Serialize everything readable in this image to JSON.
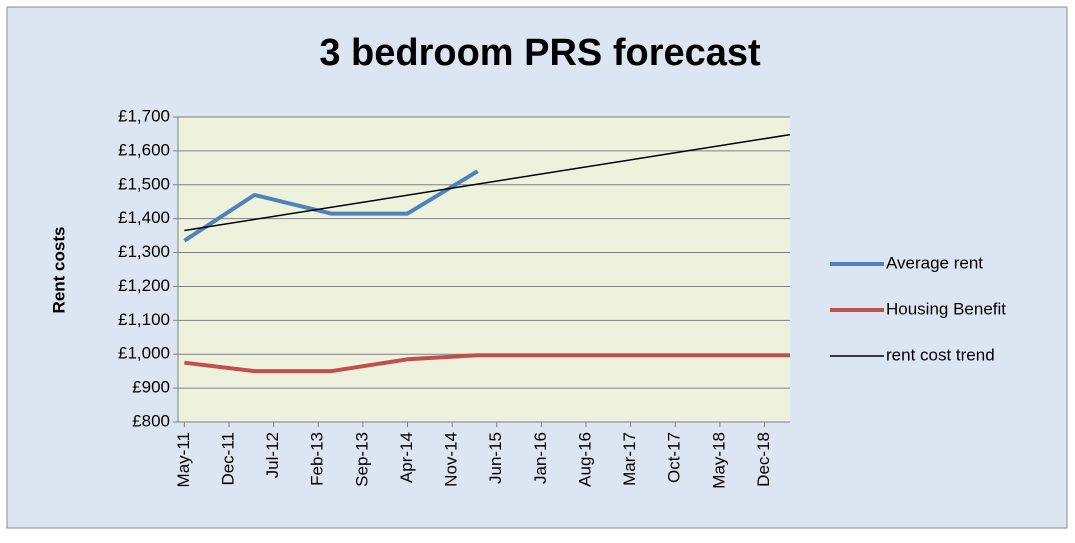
{
  "chart_data": {
    "type": "line",
    "title": "3 bedroom PRS forecast",
    "y_label": "Rent costs",
    "categories": [
      "May-11",
      "Dec-11",
      "Jul-12",
      "Feb-13",
      "Sep-13",
      "Apr-14",
      "Nov-14",
      "Jun-15",
      "Jan-16",
      "Aug-16",
      "Mar-17",
      "Oct-17",
      "May-18",
      "Dec-18"
    ],
    "xlim": [
      "Apr-11",
      "Apr-19"
    ],
    "series": [
      {
        "name": "Average rent",
        "color": "#4f81bd",
        "width": 4,
        "x": [
          "May-11",
          "Apr-12",
          "Apr-13",
          "Apr-14",
          "Mar-15"
        ],
        "values": [
          1335,
          1470,
          1415,
          1415,
          1540
        ]
      },
      {
        "name": "Housing Benefit",
        "color": "#c0504d",
        "width": 4,
        "x": [
          "May-11",
          "Apr-12",
          "Apr-13",
          "Apr-14",
          "Mar-15",
          "Apr-19"
        ],
        "values": [
          975,
          950,
          950,
          985,
          997,
          997
        ]
      },
      {
        "name": "rent cost trend",
        "color": "#000000",
        "width": 1.5,
        "x": [
          "May-11",
          "Apr-19"
        ],
        "values": [
          1365,
          1648
        ]
      }
    ],
    "ylim": [
      800,
      1700
    ],
    "yticks": [
      {
        "value": 800,
        "label": "£800"
      },
      {
        "value": 900,
        "label": "£900"
      },
      {
        "value": 1000,
        "label": "£1,000"
      },
      {
        "value": 1100,
        "label": "£1,100"
      },
      {
        "value": 1200,
        "label": "£1,200"
      },
      {
        "value": 1300,
        "label": "£1,300"
      },
      {
        "value": 1400,
        "label": "£1,400"
      },
      {
        "value": 1500,
        "label": "£1,500"
      },
      {
        "value": 1600,
        "label": "£1,600"
      },
      {
        "value": 1700,
        "label": "£1,700"
      }
    ],
    "grid": true,
    "legend": "right"
  }
}
